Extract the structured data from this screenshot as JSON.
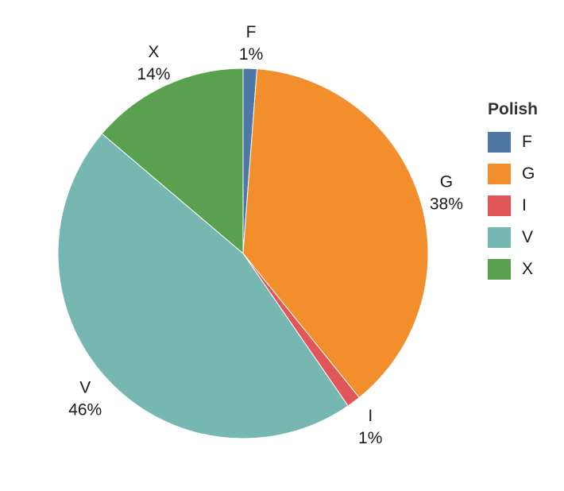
{
  "chart_data": {
    "type": "pie",
    "legend_title": "Polish",
    "legend_position": "right",
    "slices": [
      {
        "label": "F",
        "percent_label": "1%",
        "value": 1.2,
        "color": "#4E79A7"
      },
      {
        "label": "G",
        "percent_label": "38%",
        "value": 38.0,
        "color": "#F28E2B"
      },
      {
        "label": "I",
        "percent_label": "1%",
        "value": 1.2,
        "color": "#E15759"
      },
      {
        "label": "V",
        "percent_label": "46%",
        "value": 45.8,
        "color": "#76B7B2"
      },
      {
        "label": "X",
        "percent_label": "14%",
        "value": 13.8,
        "color": "#59A14F"
      }
    ]
  }
}
